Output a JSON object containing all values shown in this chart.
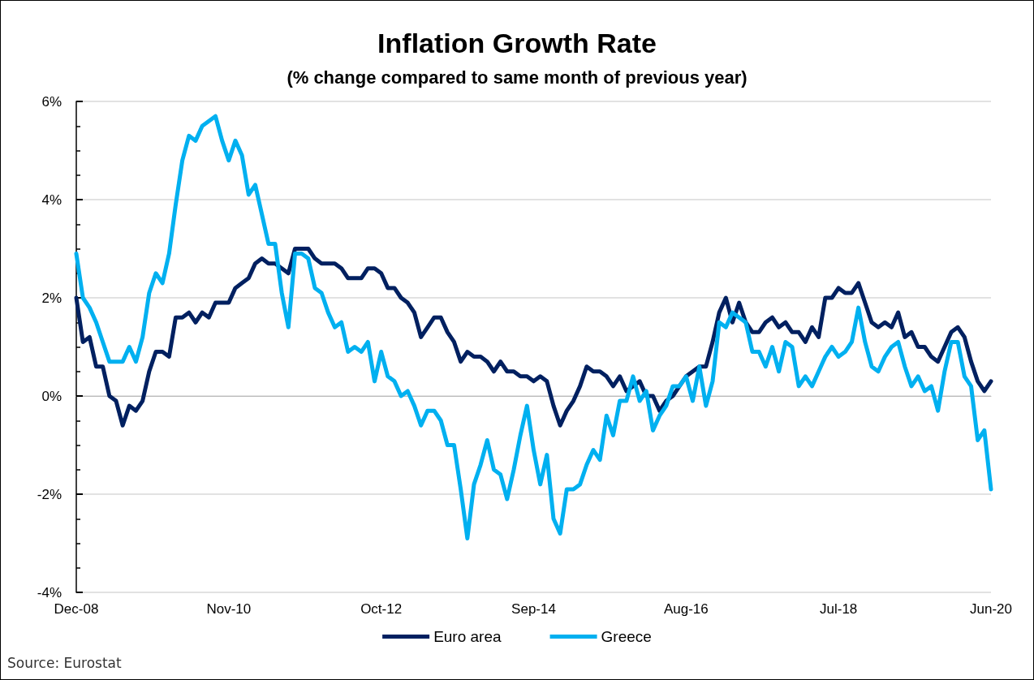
{
  "chart_data": {
    "type": "line",
    "title": "Inflation Growth Rate",
    "subtitle": "(% change compared to same month of previous year)",
    "categories": [
      "Dec-08",
      null,
      null,
      null,
      null,
      null,
      null,
      null,
      null,
      null,
      null,
      null,
      null,
      null,
      null,
      null,
      null,
      null,
      null,
      null,
      null,
      null,
      null,
      "Nov-10",
      null,
      null,
      null,
      null,
      null,
      null,
      null,
      null,
      null,
      null,
      null,
      null,
      null,
      null,
      null,
      null,
      null,
      null,
      null,
      null,
      null,
      null,
      "Oct-12",
      null,
      null,
      null,
      null,
      null,
      null,
      null,
      null,
      null,
      null,
      null,
      null,
      null,
      null,
      null,
      null,
      null,
      null,
      null,
      null,
      null,
      null,
      "Sep-14",
      null,
      null,
      null,
      null,
      null,
      null,
      null,
      null,
      null,
      null,
      null,
      null,
      null,
      null,
      null,
      null,
      null,
      null,
      null,
      null,
      null,
      null,
      "Aug-16",
      null,
      null,
      null,
      null,
      null,
      null,
      null,
      null,
      null,
      null,
      null,
      null,
      null,
      null,
      null,
      null,
      null,
      null,
      null,
      null,
      null,
      null,
      "Jul-18",
      null,
      null,
      null,
      null,
      null,
      null,
      null,
      null,
      null,
      null,
      null,
      null,
      null,
      null,
      null,
      null,
      null,
      null,
      null,
      null,
      null,
      null,
      "Jun-20"
    ],
    "series": [
      {
        "name": "Euro area",
        "color": "#002060",
        "values": [
          2.0,
          1.1,
          1.2,
          0.6,
          0.6,
          0.0,
          -0.1,
          -0.6,
          -0.2,
          -0.3,
          -0.1,
          0.5,
          0.9,
          0.9,
          0.8,
          1.6,
          1.6,
          1.7,
          1.5,
          1.7,
          1.6,
          1.9,
          1.9,
          1.9,
          2.2,
          2.3,
          2.4,
          2.7,
          2.8,
          2.7,
          2.7,
          2.6,
          2.5,
          3.0,
          3.0,
          3.0,
          2.8,
          2.7,
          2.7,
          2.7,
          2.6,
          2.4,
          2.4,
          2.4,
          2.6,
          2.6,
          2.5,
          2.2,
          2.2,
          2.0,
          1.9,
          1.7,
          1.2,
          1.4,
          1.6,
          1.6,
          1.3,
          1.1,
          0.7,
          0.9,
          0.8,
          0.8,
          0.7,
          0.5,
          0.7,
          0.5,
          0.5,
          0.4,
          0.4,
          0.3,
          0.4,
          0.3,
          -0.2,
          -0.6,
          -0.3,
          -0.1,
          0.2,
          0.6,
          0.5,
          0.5,
          0.4,
          0.2,
          0.4,
          0.1,
          0.2,
          0.3,
          0.0,
          0.0,
          -0.3,
          -0.1,
          0.0,
          0.2,
          0.4,
          0.5,
          0.6,
          0.6,
          1.1,
          1.7,
          2.0,
          1.5,
          1.9,
          1.5,
          1.3,
          1.3,
          1.5,
          1.6,
          1.4,
          1.5,
          1.3,
          1.3,
          1.1,
          1.4,
          1.2,
          2.0,
          2.0,
          2.2,
          2.1,
          2.1,
          2.3,
          1.9,
          1.5,
          1.4,
          1.5,
          1.4,
          1.7,
          1.2,
          1.3,
          1.0,
          1.0,
          0.8,
          0.7,
          1.0,
          1.3,
          1.4,
          1.2,
          0.7,
          0.3,
          0.1,
          0.3
        ]
      },
      {
        "name": "Greece",
        "color": "#00b0f0",
        "values": [
          2.9,
          2.0,
          1.8,
          1.5,
          1.1,
          0.7,
          0.7,
          0.7,
          1.0,
          0.7,
          1.2,
          2.1,
          2.5,
          2.3,
          2.9,
          3.9,
          4.8,
          5.3,
          5.2,
          5.5,
          5.6,
          5.7,
          5.2,
          4.8,
          5.2,
          4.9,
          4.1,
          4.3,
          3.7,
          3.1,
          3.1,
          2.1,
          1.4,
          2.9,
          2.9,
          2.8,
          2.2,
          2.1,
          1.7,
          1.4,
          1.5,
          0.9,
          1.0,
          0.9,
          1.1,
          0.3,
          0.9,
          0.4,
          0.3,
          0.0,
          0.1,
          -0.2,
          -0.6,
          -0.3,
          -0.3,
          -0.5,
          -1.0,
          -1.0,
          -1.9,
          -2.9,
          -1.8,
          -1.4,
          -0.9,
          -1.5,
          -1.6,
          -2.1,
          -1.5,
          -0.8,
          -0.2,
          -1.1,
          -1.8,
          -1.2,
          -2.5,
          -2.8,
          -1.9,
          -1.9,
          -1.8,
          -1.4,
          -1.1,
          -1.3,
          -0.4,
          -0.8,
          -0.1,
          -0.1,
          0.4,
          -0.1,
          0.1,
          -0.7,
          -0.4,
          -0.2,
          0.2,
          0.2,
          0.4,
          -0.1,
          0.6,
          -0.2,
          0.3,
          1.5,
          1.4,
          1.7,
          1.6,
          1.5,
          0.9,
          0.9,
          0.6,
          1.0,
          0.5,
          1.1,
          1.0,
          0.2,
          0.4,
          0.2,
          0.5,
          0.8,
          1.0,
          0.8,
          0.9,
          1.1,
          1.8,
          1.1,
          0.6,
          0.5,
          0.8,
          1.0,
          1.1,
          0.6,
          0.2,
          0.4,
          0.1,
          0.2,
          -0.3,
          0.5,
          1.1,
          1.1,
          0.4,
          0.2,
          -0.9,
          -0.7,
          -1.9
        ]
      }
    ],
    "ylim": [
      -4,
      6
    ],
    "yticks": [
      {
        "value": -4,
        "label": "-4%"
      },
      {
        "value": -2,
        "label": "-2%"
      },
      {
        "value": 0,
        "label": "0%"
      },
      {
        "value": 2,
        "label": "2%"
      },
      {
        "value": 4,
        "label": "4%"
      },
      {
        "value": 6,
        "label": "6%"
      }
    ],
    "grid": "y",
    "legend": "bottom",
    "marker": "none",
    "line_style": "solid",
    "annotations": [
      "Source: Eurostat"
    ]
  }
}
